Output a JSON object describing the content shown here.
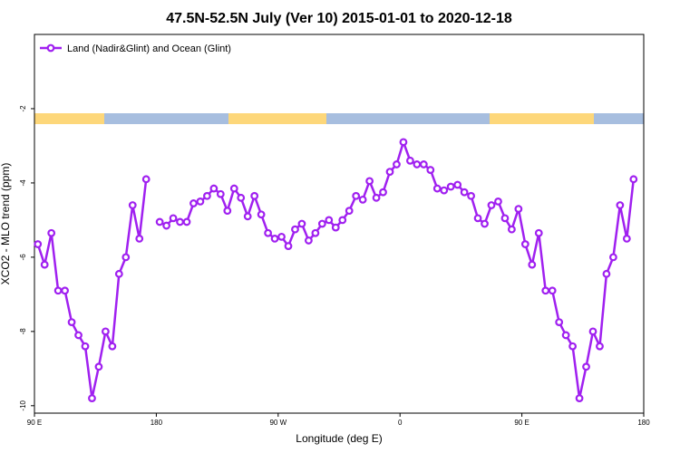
{
  "chart_data": {
    "type": "line",
    "title": "47.5N-52.5N July (Ver 10)   2015-01-01 to 2020-12-18",
    "xlabel": "Longitude (deg E)",
    "ylabel": "XCO2 - MLO trend (ppm)",
    "x": [
      92.5,
      97.5,
      102.5,
      107.5,
      112.5,
      117.5,
      122.5,
      127.5,
      132.5,
      137.5,
      142.5,
      147.5,
      152.5,
      157.5,
      162.5,
      167.5,
      172.5,
      177.5,
      182.5,
      187.5,
      192.5,
      197.5,
      202.5,
      207.5,
      212.5,
      217.5,
      222.5,
      227.5,
      232.5,
      237.5,
      242.5,
      247.5,
      252.5,
      257.5,
      262.5,
      267.5,
      272.5,
      277.5,
      282.5,
      287.5,
      292.5,
      297.5,
      302.5,
      307.5,
      312.5,
      317.5,
      322.5,
      327.5,
      332.5,
      337.5,
      342.5,
      347.5,
      352.5,
      357.5,
      362.5,
      367.5,
      372.5,
      377.5,
      382.5,
      387.5,
      392.5,
      397.5,
      402.5,
      407.5,
      412.5,
      417.5,
      422.5,
      427.5,
      432.5,
      437.5,
      442.5,
      447.5,
      452.5,
      457.5,
      462.5,
      467.5,
      472.5,
      477.5,
      482.5,
      487.5,
      492.5,
      497.5,
      502.5,
      507.5,
      512.5,
      517.5,
      522.5,
      527.5,
      532.5
    ],
    "series": [
      {
        "name": "Land (Nadir&Glint) and Ocean (Glint)",
        "color": "#a020f0",
        "values": [
          -5.65,
          -6.2,
          -5.35,
          -6.9,
          -6.9,
          -7.75,
          -8.1,
          -8.4,
          -9.8,
          -8.95,
          -8.0,
          -8.4,
          -6.45,
          -6.0,
          -4.6,
          -5.5,
          -3.9,
          null,
          -5.05,
          -5.15,
          -4.95,
          -5.05,
          -5.05,
          -4.55,
          -4.5,
          -4.35,
          -4.15,
          -4.3,
          -4.75,
          -4.15,
          -4.4,
          -4.9,
          -4.35,
          -4.85,
          -5.35,
          -5.5,
          -5.45,
          -5.7,
          -5.25,
          -5.1,
          -5.55,
          -5.35,
          -5.1,
          -5.0,
          -5.2,
          -5.0,
          -4.75,
          -4.35,
          -4.45,
          -3.95,
          -4.4,
          -4.25,
          -3.7,
          -3.5,
          -2.9,
          -3.4,
          -3.5,
          -3.5,
          -3.65,
          -4.15,
          -4.2,
          -4.1,
          -4.05,
          -4.25,
          -4.35,
          -4.95,
          -5.1,
          -4.6,
          -4.5,
          -4.95,
          -5.25,
          -4.7,
          -5.65,
          -6.2,
          -5.35,
          -6.9,
          -6.9,
          -7.75,
          -8.1,
          -8.4,
          -9.8,
          -8.95,
          -8.0,
          -8.4,
          -6.45,
          -6.0,
          -4.6,
          -5.5,
          -3.9
        ]
      }
    ],
    "xlim": [
      90,
      540
    ],
    "xticks": [
      {
        "value": 90,
        "label": "90 E"
      },
      180,
      {
        "value": 270,
        "label": "90 W"
      },
      {
        "value": 360,
        "label": "0"
      },
      {
        "value": 450,
        "label": "90 E"
      },
      {
        "value": 540,
        "label": "180"
      }
    ],
    "ylim": [
      -10.2,
      0
    ],
    "yticks": [
      -2,
      -4,
      -6,
      -8,
      -10
    ],
    "legend": "top-left"
  }
}
